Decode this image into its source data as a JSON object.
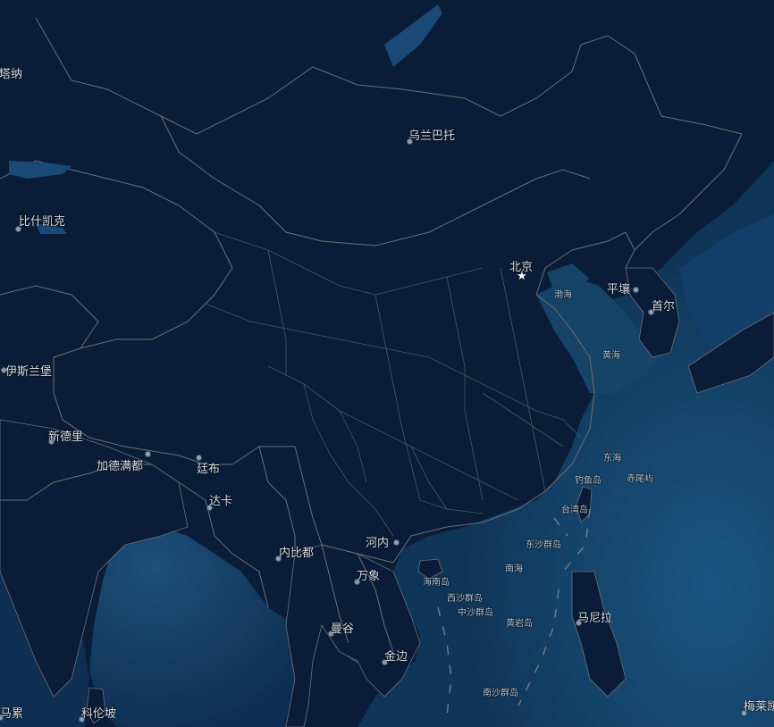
{
  "colors": {
    "land": "#0a1c37",
    "sea_shallow": "#16476e",
    "sea_deep": "#0d2e52",
    "border": "#6c7079",
    "label": "#c9d3df",
    "dot": "#8fa1b6"
  },
  "labels": {
    "astana": "新塔纳",
    "ulaanbaatar": "乌兰巴托",
    "bishkek": "比什凯克",
    "beijing": "北京",
    "bohai": "渤海",
    "pyongyang": "平壤",
    "seoul": "首尔",
    "yellow_sea": "黄海",
    "islamabad": "伊斯兰堡",
    "new_delhi": "新德里",
    "kathmandu": "加德满都",
    "thimphu": "廷布",
    "east_sea": "东海",
    "diaoyu": "钓鱼岛",
    "chiwei": "赤尾屿",
    "dhaka": "达卡",
    "taiwan": "台湾岛",
    "dongsha": "东沙群岛",
    "naypyidaw": "内比都",
    "hanoi": "河内",
    "south_sea": "南海",
    "hainan": "海南岛",
    "vientiane": "万象",
    "xisha": "西沙群岛",
    "zhongsha": "中沙群岛",
    "huangyan": "黄岩岛",
    "manila": "马尼拉",
    "bangkok": "曼谷",
    "phnom_penh": "金边",
    "nansha": "南沙群岛",
    "male": "马累",
    "colombo": "科伦坡",
    "melekeok": "梅莱凯"
  }
}
